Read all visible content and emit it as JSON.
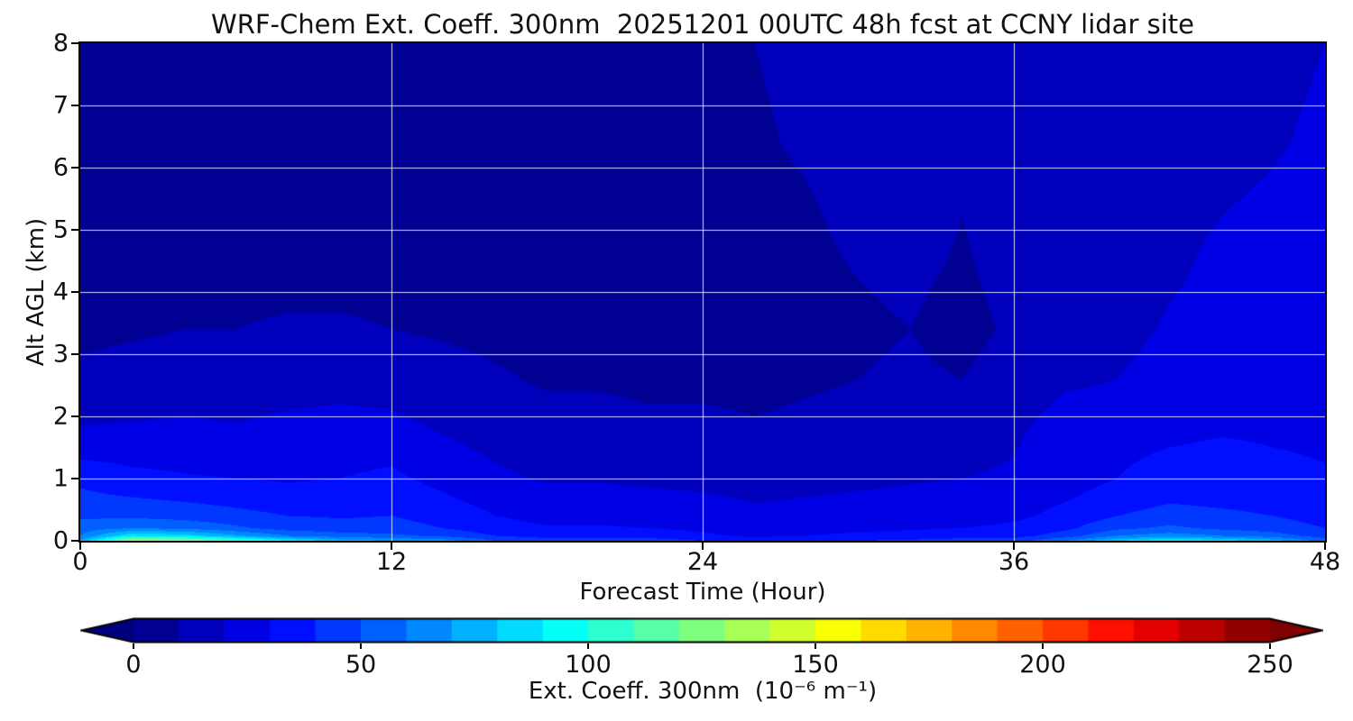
{
  "chart_data": {
    "type": "heatmap",
    "title": "WRF-Chem Ext. Coeff. 300nm  20251201 00UTC 48h fcst at CCNY lidar site",
    "xlabel": "Forecast Time (Hour)",
    "ylabel": "Alt AGL (km)",
    "xlim": [
      0,
      48
    ],
    "ylim": [
      0,
      8
    ],
    "xticks": [
      0,
      12,
      24,
      36,
      48
    ],
    "yticks": [
      0,
      1,
      2,
      3,
      4,
      5,
      6,
      7,
      8
    ],
    "gridlines": {
      "x": [
        12,
        24,
        36
      ],
      "y": [
        1,
        2,
        3,
        4,
        5,
        6,
        7
      ],
      "color": "#ffffff"
    },
    "colormap": "jet",
    "contour_level_step": 10,
    "background_value_color": "#000080",
    "colorbar": {
      "label": "Ext. Coeff. 300nm  (10⁻⁶ m⁻¹)",
      "ticks": [
        0,
        50,
        100,
        150,
        200,
        250
      ],
      "vmin": 0,
      "vmax": 250,
      "extend": "both"
    },
    "grid_x_hours": [
      0,
      2,
      4,
      6,
      8,
      10,
      12,
      14,
      16,
      18,
      20,
      22,
      24,
      26,
      28,
      30,
      32,
      34,
      36,
      38,
      40,
      42,
      44,
      46,
      48
    ],
    "grid_y_km": [
      0,
      0.08,
      0.2,
      0.4,
      0.7,
      1.0,
      1.5,
      2.0,
      2.6,
      3.4,
      4.2,
      5.2,
      6.4,
      8.0
    ],
    "values_note": "rows bottom(0km) to top(8km), ext. coeff in 1e-6 per m",
    "values": [
      [
        70,
        135,
        130,
        110,
        90,
        75,
        70,
        65,
        50,
        45,
        45,
        45,
        40,
        35,
        38,
        40,
        42,
        45,
        45,
        60,
        80,
        90,
        85,
        75,
        55
      ],
      [
        60,
        90,
        85,
        72,
        60,
        55,
        52,
        48,
        40,
        36,
        36,
        35,
        32,
        28,
        30,
        32,
        33,
        35,
        36,
        45,
        60,
        65,
        60,
        55,
        45
      ],
      [
        55,
        60,
        58,
        52,
        46,
        44,
        44,
        40,
        34,
        31,
        31,
        30,
        28,
        25,
        26,
        28,
        29,
        30,
        32,
        38,
        48,
        52,
        48,
        45,
        40
      ],
      [
        48,
        48,
        46,
        43,
        40,
        39,
        40,
        36,
        30,
        27,
        27,
        26,
        25,
        22,
        23,
        24,
        25,
        26,
        28,
        33,
        40,
        44,
        42,
        40,
        36
      ],
      [
        42,
        40,
        38,
        36,
        34,
        34,
        36,
        31,
        26,
        23,
        23,
        22,
        21,
        19,
        20,
        21,
        22,
        23,
        25,
        29,
        34,
        38,
        37,
        36,
        33
      ],
      [
        38,
        33,
        31,
        30,
        29,
        30,
        32,
        27,
        22,
        19,
        19,
        18,
        17,
        16,
        17,
        18,
        19,
        20,
        22,
        26,
        30,
        34,
        34,
        33,
        31
      ],
      [
        25,
        25,
        25,
        24,
        25,
        26,
        27,
        22,
        18,
        15,
        15,
        14,
        14,
        13,
        14,
        15,
        16,
        16,
        19,
        30,
        28,
        30,
        31,
        30,
        29
      ],
      [
        18,
        19,
        20,
        19,
        21,
        22,
        21,
        17,
        14,
        12,
        12,
        11,
        11,
        10,
        11,
        12,
        13,
        13,
        16,
        24,
        24,
        27,
        28,
        28,
        27
      ],
      [
        12,
        13,
        14,
        14,
        15,
        16,
        15,
        13,
        11,
        9,
        9,
        8,
        8,
        8,
        9,
        10,
        11,
        10,
        13,
        18,
        20,
        24,
        26,
        26,
        25
      ],
      [
        8,
        9,
        10,
        10,
        11,
        11,
        10,
        9,
        8,
        7,
        7,
        7,
        7,
        7,
        8,
        9,
        10,
        8,
        11,
        14,
        17,
        21,
        24,
        24,
        22
      ],
      [
        7,
        7,
        8,
        8,
        8,
        8,
        8,
        7,
        7,
        6,
        6,
        6,
        7,
        7,
        8,
        10,
        11,
        9,
        12,
        13,
        16,
        19,
        22,
        23,
        20
      ],
      [
        6,
        6,
        7,
        7,
        7,
        7,
        7,
        6,
        6,
        6,
        6,
        6,
        7,
        8,
        9,
        12,
        13,
        10,
        13,
        12,
        15,
        18,
        20,
        22,
        25
      ],
      [
        5,
        5,
        6,
        6,
        6,
        6,
        6,
        6,
        6,
        6,
        7,
        7,
        8,
        9,
        11,
        14,
        15,
        11,
        13,
        11,
        13,
        16,
        17,
        19,
        22
      ],
      [
        5,
        5,
        5,
        5,
        5,
        5,
        5,
        5,
        6,
        6,
        7,
        8,
        9,
        10,
        12,
        15,
        14,
        10,
        12,
        10,
        12,
        14,
        15,
        17,
        20
      ]
    ]
  }
}
